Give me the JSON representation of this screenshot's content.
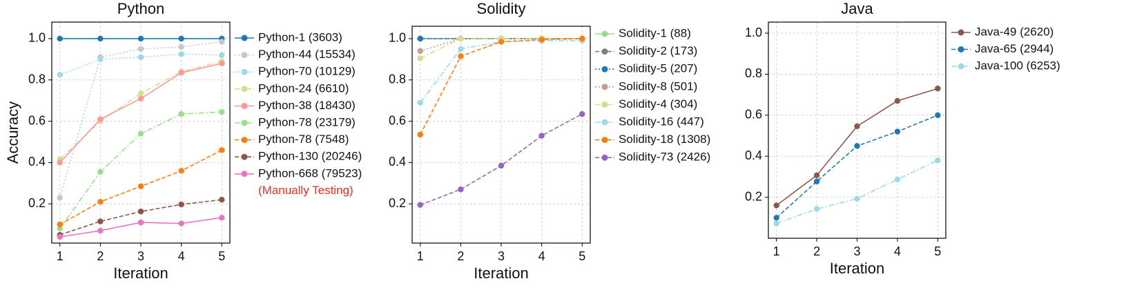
{
  "chart_data": [
    {
      "type": "line",
      "title": "Python",
      "xlabel": "Iteration",
      "ylabel": "Accuracy",
      "x": [
        1,
        2,
        3,
        4,
        5
      ],
      "xlim": [
        0.8,
        5.2
      ],
      "xticks": [
        1,
        2,
        3,
        4,
        5
      ],
      "ylim": [
        0.01,
        1.08
      ],
      "yticks": [
        0.2,
        0.4,
        0.6,
        0.8,
        {
          "value": 1.0,
          "label": "1.0"
        }
      ],
      "grid": true,
      "legend": "outside-right",
      "annotation": "(Manually Testing)",
      "annotation_color": "#e8301c",
      "series": [
        {
          "name": "Python-1 (3603)",
          "color": "#1f77b4",
          "linestyle": "solid",
          "values": [
            1.0,
            1.0,
            1.0,
            1.0,
            1.0
          ]
        },
        {
          "name": "Python-44 (15534)",
          "color": "#c7c7c7",
          "linestyle": "dotted",
          "values": [
            0.23,
            0.91,
            0.95,
            0.96,
            0.985
          ]
        },
        {
          "name": "Python-70 (10129)",
          "color": "#9edae5",
          "linestyle": "dotted",
          "values": [
            0.825,
            0.9,
            0.91,
            0.925,
            0.92
          ]
        },
        {
          "name": "Python-24 (6610)",
          "color": "#dbdb8d",
          "linestyle": "dashdot",
          "values": [
            0.415,
            0.6,
            0.735,
            0.84,
            0.89
          ]
        },
        {
          "name": "Python-38 (18430)",
          "color": "#ff9896",
          "linestyle": "solid",
          "values": [
            0.4,
            0.61,
            0.71,
            0.835,
            0.88
          ]
        },
        {
          "name": "Python-78 (23179)",
          "color": "#98df8a",
          "linestyle": "dashdot",
          "values": [
            0.08,
            0.355,
            0.54,
            0.635,
            0.645
          ]
        },
        {
          "name": "Python-78 (7548)",
          "color": "#ff7f0e",
          "linestyle": "dashed",
          "values": [
            0.1,
            0.21,
            0.285,
            0.36,
            0.46
          ]
        },
        {
          "name": "Python-130 (20246)",
          "color": "#8c564b",
          "linestyle": "dashed",
          "values": [
            0.05,
            0.115,
            0.163,
            0.197,
            0.22
          ]
        },
        {
          "name": "Python-668 (79523)",
          "color": "#e377c2",
          "linestyle": "solid",
          "values": [
            0.04,
            0.07,
            0.11,
            0.105,
            0.133
          ]
        }
      ]
    },
    {
      "type": "line",
      "title": "Solidity",
      "xlabel": "Iteration",
      "x": [
        1,
        2,
        3,
        4,
        5
      ],
      "xlim": [
        0.8,
        5.2
      ],
      "xticks": [
        1,
        2,
        3,
        4,
        5
      ],
      "ylim": [
        0.01,
        1.06
      ],
      "yticks": [
        0.2,
        0.4,
        0.6,
        0.8,
        {
          "value": 1.0,
          "label": "1.0"
        }
      ],
      "grid": true,
      "legend": "outside-right",
      "series": [
        {
          "name": "Solidity-1 (88)",
          "color": "#98df8a",
          "linestyle": "solid",
          "values": [
            1.0,
            1.0,
            1.0,
            1.0,
            1.0
          ]
        },
        {
          "name": "Solidity-2 (173)",
          "color": "#7f7f7f",
          "linestyle": "dashed",
          "values": [
            1.0,
            1.0,
            1.0,
            1.0,
            1.0
          ]
        },
        {
          "name": "Solidity-5 (207)",
          "color": "#1f77b4",
          "linestyle": "dotted",
          "values": [
            1.0,
            1.0,
            1.0,
            1.0,
            1.0
          ]
        },
        {
          "name": "Solidity-8 (501)",
          "color": "#c49c94",
          "linestyle": "dotted",
          "values": [
            0.94,
            1.0,
            1.0,
            1.0,
            1.0
          ]
        },
        {
          "name": "Solidity-4 (304)",
          "color": "#dbdb8d",
          "linestyle": "dashdot",
          "values": [
            0.905,
            1.0,
            1.0,
            1.0,
            1.0
          ]
        },
        {
          "name": "Solidity-16 (447)",
          "color": "#9edae5",
          "linestyle": "dashdot",
          "values": [
            0.69,
            0.95,
            0.985,
            0.99,
            0.99
          ]
        },
        {
          "name": "Solidity-18 (1308)",
          "color": "#ff7f0e",
          "linestyle": "dashed",
          "values": [
            0.535,
            0.915,
            0.985,
            0.995,
            1.0
          ]
        },
        {
          "name": "Solidity-73 (2426)",
          "color": "#9467bd",
          "linestyle": "dashed",
          "values": [
            0.195,
            0.27,
            0.385,
            0.53,
            0.635
          ]
        }
      ]
    },
    {
      "type": "line",
      "title": "Java",
      "xlabel": "Iteration",
      "x": [
        1,
        2,
        3,
        4,
        5
      ],
      "xlim": [
        0.8,
        5.2
      ],
      "xticks": [
        1,
        2,
        3,
        4,
        5
      ],
      "ylim": [
        0.0,
        1.054
      ],
      "yticks": [
        0.2,
        0.4,
        0.6,
        0.8,
        {
          "value": 1.0,
          "label": "1.0"
        }
      ],
      "grid": true,
      "legend": "outside-right",
      "series": [
        {
          "name": "Java-49 (2620)",
          "color": "#8c564b",
          "linestyle": "solid",
          "values": [
            0.16,
            0.307,
            0.546,
            0.67,
            0.73
          ]
        },
        {
          "name": "Java-65 (2944)",
          "color": "#1f77b4",
          "linestyle": "dashed",
          "values": [
            0.1,
            0.277,
            0.45,
            0.52,
            0.6
          ]
        },
        {
          "name": "Java-100 (6253)",
          "color": "#9edae5",
          "linestyle": "dashdot",
          "values": [
            0.072,
            0.143,
            0.193,
            0.287,
            0.38
          ]
        }
      ]
    }
  ]
}
